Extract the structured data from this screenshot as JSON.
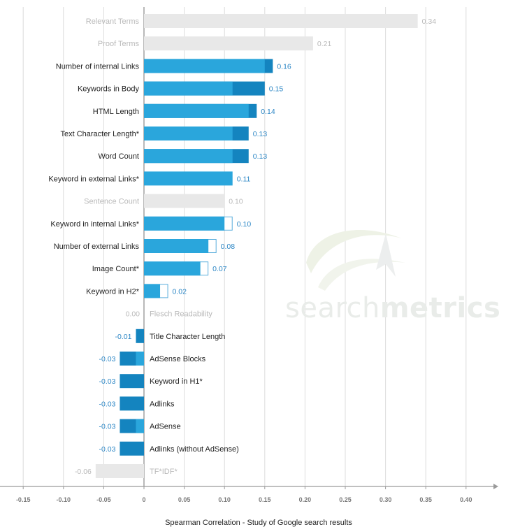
{
  "chart_data": {
    "type": "bar",
    "orientation": "horizontal",
    "title": "",
    "xlabel": "Spearman Correlation - Study of Google search results",
    "ylabel": "",
    "xlim": [
      -0.15,
      0.4
    ],
    "xticks": [
      "-0.15",
      "-0.10",
      "-0.05",
      "0",
      "0.05",
      "0.10",
      "0.15",
      "0.20",
      "0.25",
      "0.30",
      "0.35",
      "0.40"
    ],
    "grid": true,
    "legend": "none",
    "categories": [
      "Relevant Terms",
      "Proof Terms",
      "Number of internal Links",
      "Keywords in Body",
      "HTML Length",
      "Text Character Length*",
      "Word Count",
      "Keyword in external Links*",
      "Sentence Count",
      "Keyword in internal Links*",
      "Number of external Links",
      "Image Count*",
      "Keyword in H2*",
      "Flesch Readability",
      "Title Character Length",
      "AdSense Blocks",
      "Keyword in H1*",
      "Adlinks",
      "AdSense",
      "Adlinks (without AdSense)",
      "TF*IDF*"
    ],
    "values": [
      0.34,
      0.21,
      0.16,
      0.15,
      0.14,
      0.13,
      0.13,
      0.11,
      0.1,
      0.1,
      0.08,
      0.07,
      0.02,
      0.0,
      -0.01,
      -0.03,
      -0.03,
      -0.03,
      -0.03,
      -0.03,
      -0.06
    ],
    "value_labels": [
      "0.34",
      "0.21",
      "0.16",
      "0.15",
      "0.14",
      "0.13",
      "0.13",
      "0.11",
      "0.10",
      "0.10",
      "0.08",
      "0.07",
      "0.02",
      "0.00",
      "-0.01",
      "-0.03",
      "-0.03",
      "-0.03",
      "-0.03",
      "-0.03",
      "-0.06"
    ],
    "previous_values": [
      null,
      null,
      0.15,
      0.11,
      0.13,
      0.11,
      0.11,
      null,
      null,
      0.11,
      0.09,
      0.08,
      0.03,
      null,
      null,
      -0.01,
      null,
      null,
      -0.01,
      null,
      null
    ],
    "new_factor": [
      true,
      true,
      false,
      false,
      false,
      false,
      false,
      false,
      true,
      false,
      false,
      false,
      false,
      true,
      false,
      false,
      false,
      false,
      false,
      false,
      true
    ],
    "colors": {
      "bar": "#2aa6dc",
      "overlap": "#1484bf",
      "new_factor": "#e8e8e8",
      "outline": "#5aaedc",
      "label": "#2b86c5",
      "faded_label": "#b9b9b9",
      "text": "#222222"
    }
  },
  "watermark": {
    "prefix": "search",
    "suffix": "metrics"
  }
}
